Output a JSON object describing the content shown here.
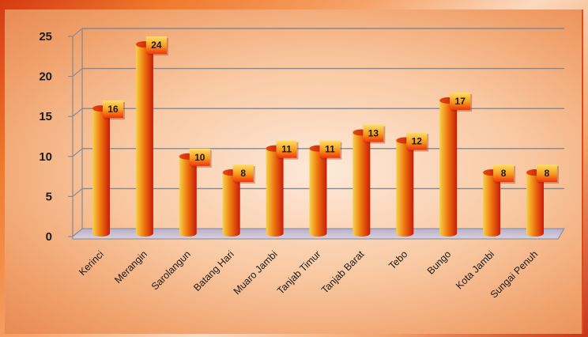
{
  "chart_data": {
    "type": "bar",
    "categories": [
      "Kerinci",
      "Merangin",
      "Sarolangun",
      "Batang Hari",
      "Muaro Jambi",
      "Tanjab Timur",
      "Tanjab Barat",
      "Tebo",
      "Bungo",
      "Kota Jambi",
      "Sungai Penuh"
    ],
    "values": [
      16,
      24,
      10,
      8,
      11,
      11,
      13,
      12,
      17,
      8,
      8
    ],
    "title": "",
    "xlabel": "",
    "ylabel": "",
    "ylim": [
      0,
      25
    ],
    "yticks": [
      0,
      5,
      10,
      15,
      20,
      25
    ],
    "grid": true,
    "legend": "none",
    "colors": {
      "bar_light": "#f6d24a",
      "bar_mid": "#f07a10",
      "bar_dark": "#c81a08",
      "label_box_light": "#ffe066",
      "label_box_dark": "#f0330a",
      "gridline": "#7f8a99"
    }
  }
}
